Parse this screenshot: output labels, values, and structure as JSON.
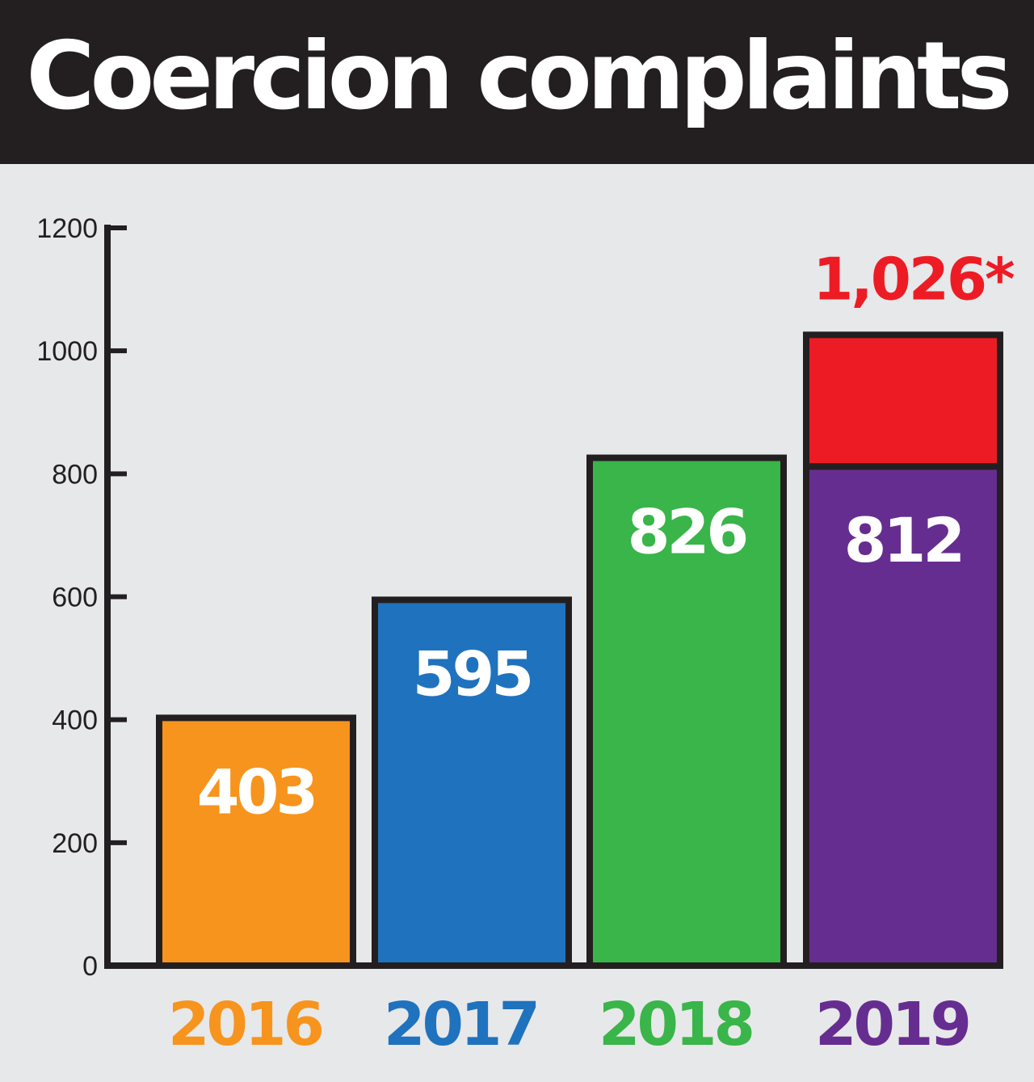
{
  "chart_data": {
    "type": "bar",
    "title": "Coercion complaints",
    "categories": [
      "2016",
      "2017",
      "2018",
      "2019"
    ],
    "values": [
      403,
      595,
      826,
      812
    ],
    "value_labels": [
      "403",
      "595",
      "826",
      "812"
    ],
    "stacked_extra": {
      "category": "2019",
      "value": 214,
      "total": 1026,
      "total_label": "1,026*"
    },
    "category_colors": [
      "#f7941d",
      "#1f72be",
      "#39b54a",
      "#662d91"
    ],
    "extra_color": "#ed1c24",
    "ylim": [
      0,
      1200
    ],
    "yticks": [
      "0",
      "200",
      "400",
      "600",
      "800",
      "1000",
      "1200"
    ],
    "xlabel": "",
    "ylabel": "",
    "grid": false,
    "legend": "none"
  }
}
